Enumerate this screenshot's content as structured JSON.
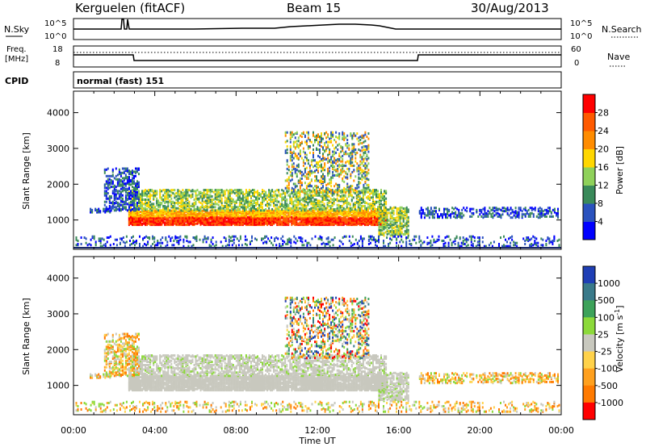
{
  "header": {
    "station": "Kerguelen (fitACF)",
    "beam": "Beam 15",
    "date": "30/Aug/2013"
  },
  "strip_labels": {
    "nsky": "N.Sky",
    "nsky_top": "10^5",
    "nsky_bottom": "10^0",
    "nsky_top_right": "10^5",
    "nsky_bottom_right": "10^0",
    "nsearch": "N.Search",
    "freq_line1": "Freq.",
    "freq_line2": "[MHz]",
    "freq_top": "18",
    "freq_bottom": "8",
    "nave_top": "60",
    "nave_bottom": "0",
    "nave": "Nave",
    "cpid": "CPID",
    "cpid_value": "normal (fast) 151"
  },
  "chart_data": [
    {
      "type": "heatmap",
      "name": "power",
      "ylabel": "Slant Range [km]",
      "xlabel": "",
      "xlim_hours": [
        0,
        24
      ],
      "ylim_km": [
        180,
        4600
      ],
      "yticks": [
        1000,
        2000,
        3000,
        4000
      ],
      "colorbar": {
        "label": "Power [dB]",
        "ticks": [
          "4",
          "8",
          "12",
          "16",
          "20",
          "24",
          "28"
        ],
        "colors": [
          "#0000ff",
          "#2a52be",
          "#3a8a5a",
          "#8fd15a",
          "#ffd700",
          "#ff8c00",
          "#ff5a00",
          "#ff0000"
        ]
      }
    },
    {
      "type": "heatmap",
      "name": "velocity",
      "ylabel": "Slant Range [km]",
      "xlabel": "Time UT",
      "xlim_hours": [
        0,
        24
      ],
      "ylim_km": [
        180,
        4600
      ],
      "yticks": [
        1000,
        2000,
        3000,
        4000
      ],
      "xticks": [
        "00:00",
        "04:00",
        "08:00",
        "12:00",
        "16:00",
        "20:00",
        "00:00"
      ],
      "colorbar": {
        "label": "Velocity [m s-1]",
        "ticks": [
          "1000",
          "500",
          "100",
          "25",
          "-25",
          "-100",
          "-500",
          "-1000"
        ],
        "colors": [
          "#1f3fb5",
          "#3a7a8a",
          "#3da25a",
          "#8cd93a",
          "#c8c8be",
          "#ffd24a",
          "#ffa01e",
          "#ff7a00",
          "#ff0000"
        ]
      }
    }
  ]
}
